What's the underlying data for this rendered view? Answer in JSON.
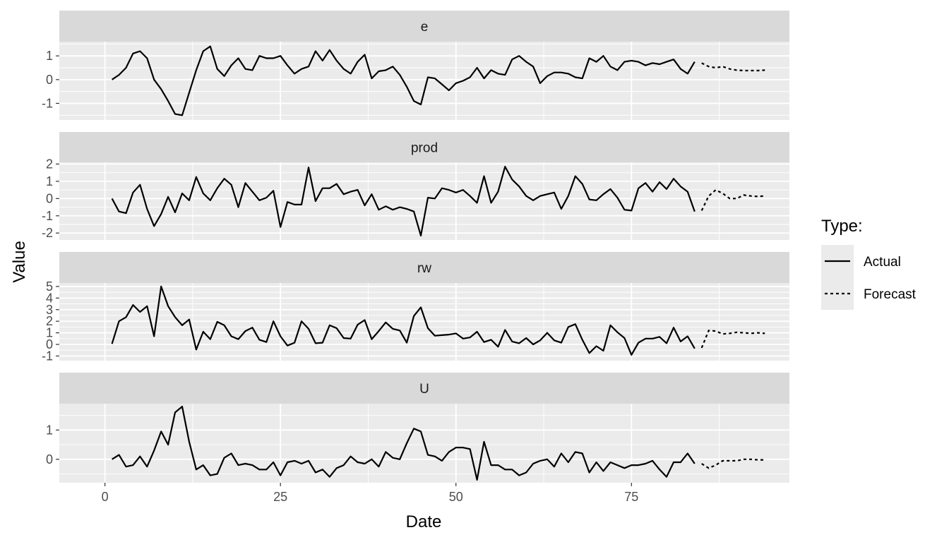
{
  "chart_data": {
    "type": "line",
    "xlabel": "Date",
    "ylabel": "Value",
    "xlim": [
      -6.5,
      97.5
    ],
    "x_ticks": [
      0,
      25,
      50,
      75
    ],
    "legend": {
      "title": "Type:",
      "position": "right",
      "entries": [
        {
          "label": "Actual",
          "linetype": "solid"
        },
        {
          "label": "Forecast",
          "linetype": "dashed"
        }
      ]
    },
    "panels": [
      {
        "strip": "e",
        "ylim": [
          -1.7,
          1.6
        ],
        "y_ticks": [
          -1,
          0,
          1
        ],
        "y_tick_labels": [
          "-1",
          "0",
          "1"
        ],
        "actual_x_start": 1,
        "actual": [
          0.0,
          0.2,
          0.5,
          1.1,
          1.2,
          0.9,
          0.0,
          -0.4,
          -0.9,
          -1.45,
          -1.5,
          -0.55,
          0.4,
          1.2,
          1.4,
          0.45,
          0.15,
          0.6,
          0.9,
          0.45,
          0.4,
          1.0,
          0.9,
          0.9,
          1.0,
          0.6,
          0.25,
          0.45,
          0.55,
          1.2,
          0.8,
          1.25,
          0.8,
          0.45,
          0.25,
          0.75,
          1.05,
          0.05,
          0.35,
          0.4,
          0.55,
          0.2,
          -0.3,
          -0.9,
          -1.05,
          0.1,
          0.05,
          -0.2,
          -0.45,
          -0.15,
          -0.05,
          0.1,
          0.5,
          0.05,
          0.4,
          0.25,
          0.2,
          0.85,
          1.0,
          0.75,
          0.55,
          -0.15,
          0.15,
          0.3,
          0.3,
          0.25,
          0.1,
          0.05,
          0.9,
          0.75,
          1.0,
          0.55,
          0.4,
          0.75,
          0.8,
          0.75,
          0.6,
          0.7,
          0.65,
          0.75,
          0.85,
          0.45,
          0.25,
          0.75
        ],
        "forecast_x_start": 85,
        "forecast": [
          0.7,
          0.55,
          0.5,
          0.55,
          0.45,
          0.4,
          0.38,
          0.38,
          0.38,
          0.4
        ]
      },
      {
        "strip": "prod",
        "ylim": [
          -2.4,
          2.1
        ],
        "y_ticks": [
          -2,
          -1,
          0,
          1,
          2
        ],
        "y_tick_labels": [
          "-2",
          "-1",
          "0",
          "1",
          "2"
        ],
        "actual_x_start": 1,
        "actual": [
          0.0,
          -0.75,
          -0.85,
          0.35,
          0.8,
          -0.6,
          -1.6,
          -0.9,
          0.1,
          -0.8,
          0.3,
          -0.1,
          1.25,
          0.3,
          -0.1,
          0.6,
          1.15,
          0.8,
          -0.5,
          0.9,
          0.4,
          -0.1,
          0.05,
          0.45,
          -1.65,
          -0.2,
          -0.35,
          -0.35,
          1.8,
          -0.15,
          0.6,
          0.6,
          0.85,
          0.25,
          0.4,
          0.5,
          -0.4,
          0.25,
          -0.65,
          -0.45,
          -0.65,
          -0.5,
          -0.6,
          -0.75,
          -2.15,
          0.05,
          0.0,
          0.6,
          0.5,
          0.35,
          0.5,
          0.15,
          -0.25,
          1.3,
          -0.25,
          0.4,
          1.85,
          1.1,
          0.7,
          0.15,
          -0.1,
          0.15,
          0.25,
          0.35,
          -0.6,
          0.15,
          1.3,
          0.85,
          -0.05,
          -0.1,
          0.25,
          0.55,
          0.05,
          -0.65,
          -0.7,
          0.6,
          0.9,
          0.4,
          0.95,
          0.55,
          1.15,
          0.7,
          0.4,
          -0.75
        ],
        "forecast_x_start": 85,
        "forecast": [
          -0.7,
          0.15,
          0.5,
          0.3,
          0.0,
          0.0,
          0.2,
          0.15,
          0.12,
          0.15
        ]
      },
      {
        "strip": "rw",
        "ylim": [
          -1.4,
          5.3
        ],
        "y_ticks": [
          -1,
          0,
          1,
          2,
          3,
          4,
          5
        ],
        "y_tick_labels": [
          "-1",
          "0",
          "1",
          "2",
          "3",
          "4",
          "5"
        ],
        "actual_x_start": 1,
        "actual": [
          0.05,
          2.0,
          2.35,
          3.4,
          2.8,
          3.3,
          0.7,
          5.0,
          3.3,
          2.35,
          1.65,
          2.15,
          -0.45,
          1.1,
          0.45,
          1.95,
          1.65,
          0.7,
          0.45,
          1.15,
          1.45,
          0.4,
          0.2,
          2.0,
          0.7,
          -0.1,
          0.15,
          2.0,
          1.35,
          0.1,
          0.15,
          1.65,
          1.4,
          0.55,
          0.5,
          1.7,
          2.1,
          0.45,
          1.15,
          1.9,
          1.35,
          1.2,
          0.15,
          2.45,
          3.2,
          1.4,
          0.75,
          0.8,
          0.85,
          0.95,
          0.5,
          0.6,
          1.1,
          0.2,
          0.4,
          -0.2,
          1.25,
          0.25,
          0.1,
          0.55,
          0.0,
          0.35,
          1.0,
          0.35,
          0.15,
          1.5,
          1.75,
          0.4,
          -0.75,
          -0.15,
          -0.55,
          1.65,
          1.05,
          0.55,
          -0.9,
          0.15,
          0.5,
          0.5,
          0.65,
          0.1,
          1.45,
          0.25,
          0.7,
          -0.35
        ],
        "forecast_x_start": 85,
        "forecast": [
          -0.3,
          1.2,
          1.15,
          0.9,
          0.95,
          1.05,
          1.0,
          0.95,
          1.0,
          0.95
        ]
      },
      {
        "strip": "U",
        "ylim": [
          -0.8,
          1.9
        ],
        "y_ticks": [
          0,
          1
        ],
        "y_tick_labels": [
          "0",
          "1"
        ],
        "actual_x_start": 1,
        "actual": [
          0.0,
          0.15,
          -0.25,
          -0.2,
          0.1,
          -0.25,
          0.3,
          0.95,
          0.5,
          1.6,
          1.8,
          0.6,
          -0.35,
          -0.2,
          -0.55,
          -0.5,
          0.05,
          0.2,
          -0.2,
          -0.15,
          -0.2,
          -0.35,
          -0.35,
          -0.1,
          -0.55,
          -0.1,
          -0.05,
          -0.15,
          -0.05,
          -0.45,
          -0.35,
          -0.6,
          -0.3,
          -0.2,
          0.1,
          -0.1,
          -0.15,
          0.0,
          -0.25,
          0.25,
          0.05,
          0.0,
          0.55,
          1.05,
          0.95,
          0.15,
          0.1,
          -0.05,
          0.25,
          0.4,
          0.4,
          0.35,
          -0.7,
          0.6,
          -0.2,
          -0.2,
          -0.35,
          -0.35,
          -0.55,
          -0.45,
          -0.15,
          -0.05,
          0.0,
          -0.25,
          0.2,
          -0.1,
          0.25,
          0.2,
          -0.45,
          -0.1,
          -0.4,
          -0.1,
          -0.2,
          -0.3,
          -0.2,
          -0.2,
          -0.15,
          -0.05,
          -0.35,
          -0.6,
          -0.1,
          -0.1,
          0.2,
          -0.15
        ],
        "forecast_x_start": 85,
        "forecast": [
          -0.15,
          -0.3,
          -0.2,
          -0.05,
          -0.05,
          -0.05,
          0.0,
          0.0,
          -0.02,
          -0.02
        ]
      }
    ]
  }
}
